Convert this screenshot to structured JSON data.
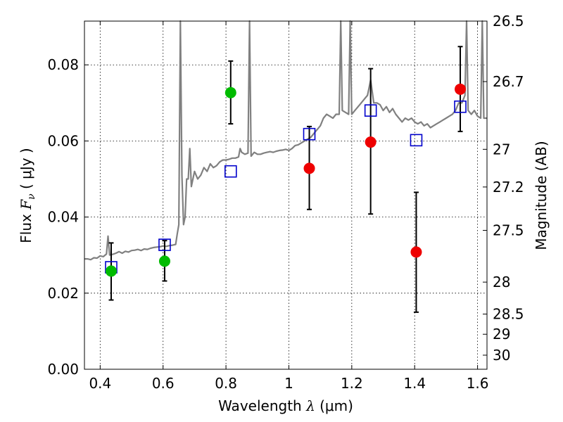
{
  "chart_data": {
    "type": "scatter",
    "xlabel": {
      "main": "Wavelength  ",
      "symbol": "λ",
      "unit": " (μm)"
    },
    "ylabel": {
      "main": "Flux  ",
      "symbol": "F",
      "subscript": "ν",
      "unit": "  ( μJy )"
    },
    "right_ylabel": "Magnitude (AB)",
    "xlim": [
      0.35,
      1.63
    ],
    "ylim": [
      0.0,
      0.0915
    ],
    "xticks": [
      {
        "value": 0.4,
        "label": "0.4"
      },
      {
        "value": 0.6,
        "label": "0.6"
      },
      {
        "value": 0.8,
        "label": "0.8"
      },
      {
        "value": 1.0,
        "label": "1"
      },
      {
        "value": 1.2,
        "label": "1.2"
      },
      {
        "value": 1.4,
        "label": "1.4"
      },
      {
        "value": 1.6,
        "label": "1.6"
      }
    ],
    "yticks": [
      {
        "value": 0.0,
        "label": "0.00"
      },
      {
        "value": 0.02,
        "label": "0.02"
      },
      {
        "value": 0.04,
        "label": "0.04"
      },
      {
        "value": 0.06,
        "label": "0.06"
      },
      {
        "value": 0.08,
        "label": "0.08"
      }
    ],
    "right_ticks": [
      {
        "flux": 0.0915,
        "label": "26.5"
      },
      {
        "flux": 0.0756,
        "label": "26.7"
      },
      {
        "flux": 0.0578,
        "label": "27"
      },
      {
        "flux": 0.0479,
        "label": "27.2"
      },
      {
        "flux": 0.0365,
        "label": "27.5"
      },
      {
        "flux": 0.0229,
        "label": "28"
      },
      {
        "flux": 0.0145,
        "label": "28.5"
      },
      {
        "flux": 0.0092,
        "label": "29"
      },
      {
        "flux": 0.0037,
        "label": "30"
      }
    ],
    "grid": true,
    "model_spectrum": {
      "color": "#808080",
      "points": [
        [
          0.35,
          0.029
        ],
        [
          0.36,
          0.029
        ],
        [
          0.37,
          0.0288
        ],
        [
          0.38,
          0.0293
        ],
        [
          0.39,
          0.0292
        ],
        [
          0.4,
          0.0298
        ],
        [
          0.41,
          0.0296
        ],
        [
          0.42,
          0.0303
        ],
        [
          0.425,
          0.035
        ],
        [
          0.43,
          0.03
        ],
        [
          0.44,
          0.0302
        ],
        [
          0.45,
          0.0305
        ],
        [
          0.46,
          0.0309
        ],
        [
          0.47,
          0.0305
        ],
        [
          0.48,
          0.031
        ],
        [
          0.49,
          0.0308
        ],
        [
          0.5,
          0.0312
        ],
        [
          0.51,
          0.0313
        ],
        [
          0.52,
          0.0315
        ],
        [
          0.53,
          0.0312
        ],
        [
          0.54,
          0.0316
        ],
        [
          0.55,
          0.0315
        ],
        [
          0.56,
          0.0318
        ],
        [
          0.57,
          0.032
        ],
        [
          0.58,
          0.0321
        ],
        [
          0.59,
          0.0322
        ],
        [
          0.6,
          0.0324
        ],
        [
          0.61,
          0.0323
        ],
        [
          0.62,
          0.0325
        ],
        [
          0.63,
          0.0326
        ],
        [
          0.64,
          0.0328
        ],
        [
          0.645,
          0.0355
        ],
        [
          0.65,
          0.038
        ],
        [
          0.655,
          0.0915
        ],
        [
          0.66,
          0.051
        ],
        [
          0.665,
          0.038
        ],
        [
          0.67,
          0.04
        ],
        [
          0.675,
          0.05
        ],
        [
          0.68,
          0.05
        ],
        [
          0.685,
          0.058
        ],
        [
          0.69,
          0.048
        ],
        [
          0.7,
          0.052
        ],
        [
          0.71,
          0.05
        ],
        [
          0.72,
          0.051
        ],
        [
          0.73,
          0.053
        ],
        [
          0.74,
          0.052
        ],
        [
          0.75,
          0.054
        ],
        [
          0.76,
          0.053
        ],
        [
          0.77,
          0.0535
        ],
        [
          0.78,
          0.0545
        ],
        [
          0.79,
          0.055
        ],
        [
          0.8,
          0.055
        ],
        [
          0.81,
          0.0552
        ],
        [
          0.82,
          0.0555
        ],
        [
          0.83,
          0.0555
        ],
        [
          0.84,
          0.0558
        ],
        [
          0.845,
          0.058
        ],
        [
          0.85,
          0.057
        ],
        [
          0.86,
          0.0565
        ],
        [
          0.87,
          0.0568
        ],
        [
          0.875,
          0.0915
        ],
        [
          0.88,
          0.056
        ],
        [
          0.89,
          0.057
        ],
        [
          0.9,
          0.0565
        ],
        [
          0.91,
          0.0565
        ],
        [
          0.92,
          0.0568
        ],
        [
          0.93,
          0.057
        ],
        [
          0.94,
          0.0572
        ],
        [
          0.95,
          0.057
        ],
        [
          0.96,
          0.0573
        ],
        [
          0.97,
          0.0575
        ],
        [
          0.98,
          0.0576
        ],
        [
          0.99,
          0.0578
        ],
        [
          1.0,
          0.0575
        ],
        [
          1.01,
          0.058
        ],
        [
          1.02,
          0.0588
        ],
        [
          1.03,
          0.059
        ],
        [
          1.04,
          0.0595
        ],
        [
          1.05,
          0.06
        ],
        [
          1.06,
          0.0605
        ],
        [
          1.07,
          0.061
        ],
        [
          1.08,
          0.062
        ],
        [
          1.09,
          0.063
        ],
        [
          1.1,
          0.064
        ],
        [
          1.11,
          0.066
        ],
        [
          1.12,
          0.067
        ],
        [
          1.13,
          0.0665
        ],
        [
          1.14,
          0.066
        ],
        [
          1.15,
          0.067
        ],
        [
          1.16,
          0.067
        ],
        [
          1.165,
          0.0915
        ],
        [
          1.17,
          0.068
        ],
        [
          1.18,
          0.0675
        ],
        [
          1.19,
          0.067
        ],
        [
          1.195,
          0.0915
        ],
        [
          1.2,
          0.067
        ],
        [
          1.21,
          0.068
        ],
        [
          1.22,
          0.069
        ],
        [
          1.23,
          0.07
        ],
        [
          1.24,
          0.071
        ],
        [
          1.25,
          0.072
        ],
        [
          1.26,
          0.076
        ],
        [
          1.27,
          0.07
        ],
        [
          1.28,
          0.07
        ],
        [
          1.29,
          0.0695
        ],
        [
          1.3,
          0.068
        ],
        [
          1.31,
          0.069
        ],
        [
          1.32,
          0.0675
        ],
        [
          1.33,
          0.0685
        ],
        [
          1.34,
          0.067
        ],
        [
          1.35,
          0.066
        ],
        [
          1.36,
          0.065
        ],
        [
          1.37,
          0.066
        ],
        [
          1.38,
          0.0655
        ],
        [
          1.39,
          0.066
        ],
        [
          1.4,
          0.065
        ],
        [
          1.41,
          0.0645
        ],
        [
          1.42,
          0.065
        ],
        [
          1.43,
          0.064
        ],
        [
          1.44,
          0.0645
        ],
        [
          1.45,
          0.0635
        ],
        [
          1.46,
          0.064
        ],
        [
          1.47,
          0.0645
        ],
        [
          1.48,
          0.065
        ],
        [
          1.49,
          0.0655
        ],
        [
          1.5,
          0.066
        ],
        [
          1.51,
          0.0665
        ],
        [
          1.52,
          0.067
        ],
        [
          1.53,
          0.068
        ],
        [
          1.54,
          0.07
        ],
        [
          1.55,
          0.07
        ],
        [
          1.56,
          0.072
        ],
        [
          1.565,
          0.0915
        ],
        [
          1.57,
          0.068
        ],
        [
          1.58,
          0.067
        ],
        [
          1.59,
          0.068
        ],
        [
          1.6,
          0.0665
        ],
        [
          1.61,
          0.066
        ],
        [
          1.615,
          0.0915
        ],
        [
          1.62,
          0.066
        ],
        [
          1.63,
          0.066
        ]
      ]
    },
    "series": [
      {
        "marker": "square-open",
        "color": "#0000cc",
        "points": [
          {
            "x": 0.435,
            "y": 0.0268
          },
          {
            "x": 0.605,
            "y": 0.0327
          },
          {
            "x": 0.815,
            "y": 0.052
          },
          {
            "x": 1.065,
            "y": 0.0618
          },
          {
            "x": 1.26,
            "y": 0.068
          },
          {
            "x": 1.405,
            "y": 0.0602
          },
          {
            "x": 1.545,
            "y": 0.069
          }
        ]
      },
      {
        "marker": "circle",
        "color": "#00bb00",
        "points": [
          {
            "x": 0.435,
            "y": 0.0258,
            "yerr": [
              0.0182,
              0.0332
            ]
          },
          {
            "x": 0.605,
            "y": 0.0284,
            "yerr": [
              0.0232,
              0.0338
            ]
          },
          {
            "x": 0.815,
            "y": 0.0727,
            "yerr": [
              0.0645,
              0.081
            ]
          }
        ]
      },
      {
        "marker": "circle",
        "color": "#ee0000",
        "points": [
          {
            "x": 1.065,
            "y": 0.0528,
            "yerr": [
              0.042,
              0.0638
            ]
          },
          {
            "x": 1.26,
            "y": 0.0597,
            "yerr": [
              0.0408,
              0.079
            ]
          },
          {
            "x": 1.405,
            "y": 0.0308,
            "yerr": [
              0.015,
              0.0465
            ]
          },
          {
            "x": 1.545,
            "y": 0.0736,
            "yerr": [
              0.0625,
              0.0848
            ]
          }
        ]
      }
    ]
  }
}
